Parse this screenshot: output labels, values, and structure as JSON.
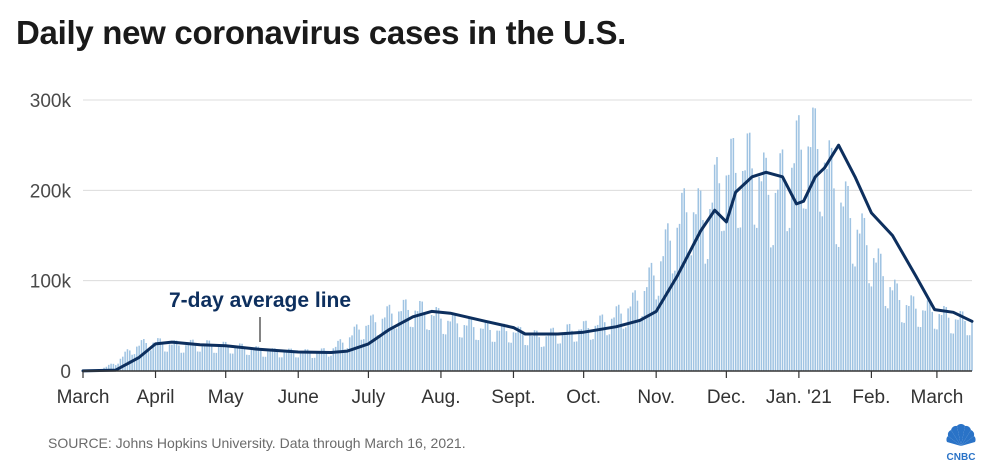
{
  "title": "Daily new coronavirus cases in the U.S.",
  "source": "SOURCE: Johns Hopkins University. Data through March 16, 2021.",
  "logo_text": "CNBC",
  "colors": {
    "bars": "#9fc3e2",
    "line": "#0d2f5e",
    "grid": "#dcdcdc",
    "axis": "#333333",
    "title": "#1a1a1a"
  },
  "chart_data": {
    "type": "bar",
    "title": "Daily new coronavirus cases in the U.S.",
    "xlabel": "",
    "ylabel": "",
    "ylim": [
      0,
      300000
    ],
    "yticks": [
      0,
      100000,
      200000,
      300000
    ],
    "ytick_labels": [
      "0",
      "100k",
      "200k",
      "300k"
    ],
    "xtick_labels": [
      "March",
      "April",
      "May",
      "June",
      "July",
      "Aug.",
      "Sept.",
      "Oct.",
      "Nov.",
      "Dec.",
      "Jan. '21",
      "Feb.",
      "March"
    ],
    "xtick_dates": [
      "2020-03-01",
      "2020-04-01",
      "2020-05-01",
      "2020-06-01",
      "2020-07-01",
      "2020-08-01",
      "2020-09-01",
      "2020-10-01",
      "2020-11-01",
      "2020-12-01",
      "2021-01-01",
      "2021-02-01",
      "2021-03-01"
    ],
    "date_range": [
      "2020-03-01",
      "2021-03-16"
    ],
    "grid": true,
    "annotation": {
      "text": "7-day average line",
      "target": "7-day average line"
    },
    "series": [
      {
        "kind": "bar",
        "values": {
          "dates": [
            "2020-03-01",
            "2020-03-08",
            "2020-03-15",
            "2020-03-22",
            "2020-03-29",
            "2020-04-05",
            "2020-04-12",
            "2020-04-19",
            "2020-04-26",
            "2020-05-03",
            "2020-05-10",
            "2020-05-17",
            "2020-05-24",
            "2020-05-31",
            "2020-06-07",
            "2020-06-14",
            "2020-06-21",
            "2020-06-28",
            "2020-07-05",
            "2020-07-12",
            "2020-07-19",
            "2020-07-26",
            "2020-08-02",
            "2020-08-09",
            "2020-08-16",
            "2020-08-23",
            "2020-08-30",
            "2020-09-06",
            "2020-09-13",
            "2020-09-20",
            "2020-09-27",
            "2020-10-04",
            "2020-10-11",
            "2020-10-18",
            "2020-10-25",
            "2020-11-01",
            "2020-11-08",
            "2020-11-15",
            "2020-11-22",
            "2020-11-29",
            "2020-12-06",
            "2020-12-13",
            "2020-12-20",
            "2020-12-27",
            "2021-01-03",
            "2021-01-10",
            "2021-01-17",
            "2021-01-24",
            "2021-01-31",
            "2021-02-07",
            "2021-02-14",
            "2021-02-21",
            "2021-02-28",
            "2021-03-07",
            "2021-03-14"
          ],
          "cases": [
            200,
            1500,
            9000,
            25000,
            32000,
            30000,
            28000,
            30000,
            28000,
            27000,
            25000,
            22000,
            21000,
            21000,
            20000,
            22000,
            33000,
            48000,
            55000,
            65000,
            68000,
            64000,
            57000,
            52000,
            48000,
            45000,
            44000,
            40000,
            37000,
            42000,
            45000,
            48000,
            55000,
            65000,
            80000,
            110000,
            150000,
            180000,
            165000,
            215000,
            220000,
            225000,
            190000,
            215000,
            250000,
            245000,
            195000,
            165000,
            135000,
            100000,
            75000,
            68000,
            65000,
            58000,
            55000
          ]
        }
      },
      {
        "kind": "line",
        "label": "7-day average line",
        "dates": [
          "2020-03-01",
          "2020-03-15",
          "2020-03-25",
          "2020-04-01",
          "2020-04-08",
          "2020-04-20",
          "2020-05-01",
          "2020-05-15",
          "2020-06-01",
          "2020-06-15",
          "2020-06-22",
          "2020-07-01",
          "2020-07-10",
          "2020-07-20",
          "2020-07-28",
          "2020-08-05",
          "2020-08-20",
          "2020-09-01",
          "2020-09-06",
          "2020-09-20",
          "2020-10-01",
          "2020-10-15",
          "2020-10-25",
          "2020-11-01",
          "2020-11-10",
          "2020-11-20",
          "2020-11-26",
          "2020-12-01",
          "2020-12-05",
          "2020-12-12",
          "2020-12-18",
          "2020-12-25",
          "2020-12-31",
          "2021-01-03",
          "2021-01-08",
          "2021-01-12",
          "2021-01-18",
          "2021-01-25",
          "2021-02-01",
          "2021-02-10",
          "2021-02-20",
          "2021-02-28",
          "2021-03-08",
          "2021-03-16"
        ],
        "cases": [
          100,
          1000,
          15000,
          30000,
          32000,
          29000,
          28000,
          24000,
          21000,
          20500,
          22000,
          30000,
          46000,
          60000,
          66000,
          64000,
          55000,
          48000,
          41000,
          41000,
          43000,
          49000,
          56000,
          66000,
          105000,
          155000,
          178000,
          165000,
          198000,
          215000,
          220000,
          215000,
          185000,
          188000,
          215000,
          225000,
          250000,
          215000,
          175000,
          150000,
          105000,
          68000,
          65000,
          55000
        ]
      }
    ]
  }
}
